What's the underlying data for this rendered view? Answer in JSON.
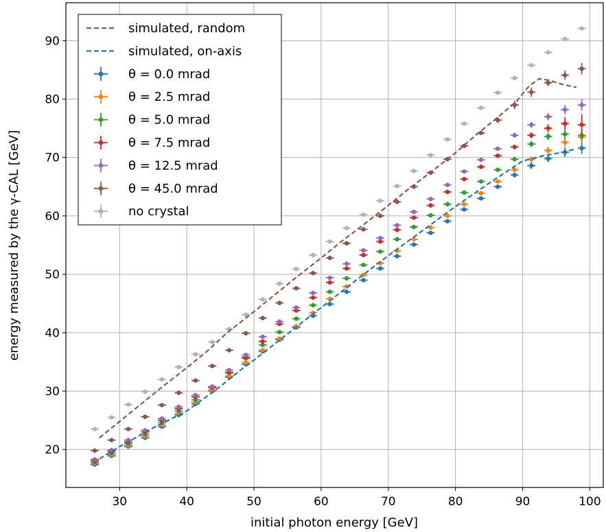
{
  "chart_data": {
    "type": "scatter",
    "xlabel": "initial photon energy [GeV]",
    "ylabel": "energy measured by the γ-CAL [GeV]",
    "xlim": [
      22,
      102
    ],
    "ylim": [
      13.5,
      96.5
    ],
    "xticks": [
      30,
      40,
      50,
      60,
      70,
      80,
      90,
      100
    ],
    "yticks": [
      20,
      30,
      40,
      50,
      60,
      70,
      80,
      90
    ],
    "grid": true,
    "legend_position": "top-left",
    "x": [
      26.3,
      28.8,
      31.3,
      33.8,
      36.3,
      38.8,
      41.3,
      43.8,
      46.3,
      48.8,
      51.3,
      53.8,
      56.3,
      58.8,
      61.3,
      63.8,
      66.3,
      68.8,
      71.3,
      73.8,
      76.3,
      78.8,
      81.3,
      83.8,
      86.3,
      88.8,
      91.3,
      93.8,
      96.3,
      98.8
    ],
    "series": [
      {
        "name": "simulated, random",
        "kind": "line",
        "style": "dashed",
        "color": "#8c564b",
        "x": [
          27,
          30,
          33,
          36,
          40,
          43,
          46,
          50,
          53,
          56,
          60,
          63,
          66,
          70,
          73,
          76,
          80,
          83,
          86,
          89,
          91,
          92.5,
          94,
          96,
          98
        ],
        "values": [
          22,
          24.8,
          27.6,
          30.4,
          34,
          36.8,
          40,
          43.6,
          46.4,
          49.2,
          52.8,
          55.6,
          58.2,
          61.8,
          64.6,
          67.2,
          70.8,
          73.8,
          76.6,
          79.5,
          82.3,
          83.5,
          83.2,
          82.5,
          82
        ]
      },
      {
        "name": "simulated, on-axis",
        "kind": "line",
        "style": "dashed",
        "color": "#1f77b4",
        "x": [
          27,
          30,
          35,
          40,
          45,
          48,
          50,
          55,
          60,
          65,
          70,
          75,
          80,
          85,
          90,
          93,
          96,
          98
        ],
        "values": [
          18.4,
          20.5,
          23.7,
          26.6,
          30.8,
          33.6,
          35.3,
          39.8,
          44.3,
          48.8,
          53.2,
          57.4,
          61.6,
          65.6,
          69.4,
          70.3,
          70.9,
          71.5
        ]
      },
      {
        "name": "θ = 0.0 mrad",
        "color": "#1f77b4",
        "values": [
          17.4,
          18.9,
          20.5,
          22.0,
          23.9,
          25.9,
          27.8,
          30.0,
          32.4,
          34.6,
          36.8,
          38.8,
          40.9,
          42.9,
          44.9,
          47.0,
          49.0,
          51.0,
          53.1,
          55.1,
          57.1,
          59.1,
          61.1,
          63.0,
          65.0,
          67.0,
          68.6,
          69.8,
          70.9,
          71.6
        ],
        "yerr": [
          0.3,
          0.3,
          0.3,
          0.3,
          0.3,
          0.3,
          0.3,
          0.3,
          0.3,
          0.3,
          0.3,
          0.3,
          0.3,
          0.3,
          0.3,
          0.3,
          0.3,
          0.3,
          0.3,
          0.3,
          0.3,
          0.3,
          0.3,
          0.3,
          0.3,
          0.4,
          0.6,
          0.6,
          0.8,
          1.0
        ]
      },
      {
        "name": "θ = 2.5 mrad",
        "color": "#ff7f0e",
        "values": [
          17.6,
          19.1,
          20.7,
          22.3,
          24.2,
          26.2,
          28.1,
          30.2,
          32.6,
          34.9,
          37.0,
          39.0,
          41.1,
          43.4,
          45.8,
          47.9,
          49.9,
          51.9,
          54.0,
          56.0,
          58.0,
          60.0,
          62.0,
          63.9,
          65.9,
          67.9,
          69.7,
          71.2,
          72.6,
          73.5
        ],
        "yerr": [
          0.3,
          0.3,
          0.3,
          0.3,
          0.3,
          0.3,
          0.3,
          0.3,
          0.3,
          0.3,
          0.3,
          0.3,
          0.3,
          0.3,
          0.3,
          0.3,
          0.3,
          0.3,
          0.3,
          0.3,
          0.3,
          0.3,
          0.3,
          0.3,
          0.3,
          0.4,
          0.5,
          0.6,
          0.8,
          1.0
        ]
      },
      {
        "name": "θ = 5.0 mrad",
        "color": "#2ca02c",
        "values": [
          17.8,
          19.4,
          21.0,
          22.6,
          24.6,
          26.6,
          28.5,
          30.6,
          33.1,
          35.6,
          37.9,
          40.1,
          42.4,
          44.7,
          47.0,
          49.3,
          51.6,
          53.9,
          56.0,
          58.1,
          60.1,
          62.0,
          64.0,
          65.9,
          67.9,
          69.7,
          72.3,
          73.6,
          74.0,
          73.8
        ],
        "yerr": [
          0.3,
          0.3,
          0.3,
          0.3,
          0.3,
          0.3,
          0.3,
          0.3,
          0.3,
          0.3,
          0.3,
          0.3,
          0.3,
          0.3,
          0.3,
          0.3,
          0.3,
          0.3,
          0.3,
          0.3,
          0.3,
          0.3,
          0.3,
          0.3,
          0.3,
          0.4,
          0.5,
          0.6,
          0.9,
          1.1
        ]
      },
      {
        "name": "θ = 7.5 mrad",
        "color": "#d62728",
        "values": [
          18.1,
          19.7,
          21.3,
          23.0,
          25.0,
          27.0,
          29.0,
          30.6,
          33.2,
          35.8,
          38.5,
          41.5,
          43.8,
          46.0,
          48.6,
          51.0,
          53.3,
          55.6,
          57.6,
          59.7,
          61.8,
          64.1,
          66.3,
          68.4,
          70.3,
          71.8,
          73.8,
          75.0,
          75.8,
          75.6
        ],
        "yerr": [
          0.3,
          0.3,
          0.3,
          0.3,
          0.3,
          0.3,
          0.3,
          0.3,
          0.3,
          0.3,
          0.3,
          0.3,
          0.3,
          0.3,
          0.3,
          0.3,
          0.3,
          0.3,
          0.3,
          0.3,
          0.3,
          0.3,
          0.3,
          0.3,
          0.3,
          0.4,
          0.5,
          0.7,
          1.1,
          1.8
        ]
      },
      {
        "name": "θ = 12.5 mrad",
        "color": "#9467bd",
        "values": [
          18.3,
          19.9,
          21.6,
          23.3,
          25.3,
          27.3,
          29.3,
          30.8,
          33.6,
          36.2,
          39.3,
          41.9,
          44.3,
          46.8,
          49.4,
          51.8,
          54.1,
          56.2,
          58.4,
          60.7,
          62.9,
          65.3,
          67.6,
          69.6,
          71.5,
          73.8,
          75.6,
          77.0,
          78.2,
          79.0
        ],
        "yerr": [
          0.3,
          0.3,
          0.3,
          0.3,
          0.3,
          0.3,
          0.3,
          0.3,
          0.3,
          0.3,
          0.3,
          0.3,
          0.3,
          0.3,
          0.3,
          0.3,
          0.3,
          0.3,
          0.3,
          0.3,
          0.3,
          0.3,
          0.3,
          0.3,
          0.3,
          0.4,
          0.5,
          0.6,
          0.8,
          1.0
        ]
      },
      {
        "name": "θ = 45.0 mrad",
        "color": "#8c564b",
        "values": [
          19.8,
          21.6,
          23.5,
          25.6,
          27.6,
          29.7,
          31.8,
          34.3,
          37.0,
          39.9,
          42.5,
          45.1,
          47.6,
          50.2,
          52.8,
          55.3,
          57.7,
          60.0,
          62.4,
          65.0,
          67.4,
          69.7,
          72.0,
          74.2,
          76.4,
          79.0,
          81.2,
          82.8,
          84.1,
          85.2
        ],
        "yerr": [
          0.3,
          0.3,
          0.3,
          0.3,
          0.3,
          0.3,
          0.3,
          0.3,
          0.3,
          0.3,
          0.3,
          0.3,
          0.3,
          0.3,
          0.3,
          0.3,
          0.3,
          0.3,
          0.3,
          0.3,
          0.3,
          0.3,
          0.3,
          0.3,
          0.5,
          0.7,
          0.8,
          0.6,
          0.8,
          1.0
        ]
      },
      {
        "name": "no crystal",
        "color": "#b2b2b2",
        "values": [
          23.5,
          25.5,
          27.7,
          29.9,
          32.0,
          34.1,
          36.3,
          38.4,
          40.6,
          43.1,
          45.7,
          48.4,
          50.9,
          53.3,
          55.6,
          57.9,
          60.2,
          62.6,
          65.1,
          67.7,
          70.4,
          73.1,
          75.8,
          78.5,
          81.1,
          83.6,
          85.8,
          88.0,
          90.3,
          92.1
        ],
        "yerr": [
          0.2,
          0.2,
          0.2,
          0.2,
          0.2,
          0.2,
          0.2,
          0.2,
          0.2,
          0.2,
          0.2,
          0.2,
          0.2,
          0.2,
          0.2,
          0.2,
          0.2,
          0.2,
          0.2,
          0.2,
          0.2,
          0.2,
          0.2,
          0.2,
          0.2,
          0.2,
          0.2,
          0.2,
          0.2,
          0.2
        ]
      }
    ]
  }
}
